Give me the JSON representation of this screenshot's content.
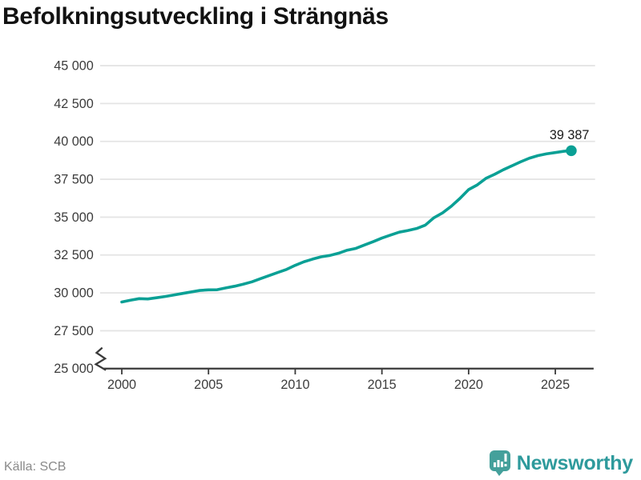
{
  "title": "Befolkningsutveckling i Strängnäs",
  "source": "Källa: SCB",
  "branding": {
    "logo_text": "Newsworthy",
    "logo_icon": "bar-chart-speech-bubble-icon"
  },
  "colors": {
    "line": "#0aa095",
    "dot": "#0aa095",
    "grid": "#e4e4e4",
    "axis": "#3a3a3a",
    "tick_label": "#3c3c3c",
    "end_label": "#1a1a1a",
    "title": "#121212",
    "source_text": "#8a8a8a",
    "brand": "#2e9a9c",
    "logo_fill": "#44a09b"
  },
  "chart_data": {
    "type": "line",
    "title": "Befolkningsutveckling i Strängnäs",
    "xlabel": "",
    "ylabel": "",
    "grid": true,
    "legend": false,
    "axis_break": true,
    "ylim": [
      25000,
      45000
    ],
    "xlim": [
      1999,
      2027.2
    ],
    "y_ticks": [
      {
        "value": 45000,
        "label": "45 000"
      },
      {
        "value": 42500,
        "label": "42 500"
      },
      {
        "value": 40000,
        "label": "40 000"
      },
      {
        "value": 37500,
        "label": "37 500"
      },
      {
        "value": 35000,
        "label": "35 000"
      },
      {
        "value": 32500,
        "label": "32 500"
      },
      {
        "value": 30000,
        "label": "30 000"
      },
      {
        "value": 27500,
        "label": "27 500"
      },
      {
        "value": 25000,
        "label": "25 000"
      }
    ],
    "x_ticks": [
      {
        "value": 2000,
        "label": "2000"
      },
      {
        "value": 2005,
        "label": "2005"
      },
      {
        "value": 2010,
        "label": "2010"
      },
      {
        "value": 2015,
        "label": "2015"
      },
      {
        "value": 2020,
        "label": "2020"
      },
      {
        "value": 2025,
        "label": "2025"
      }
    ],
    "x": [
      2000,
      2000.5,
      2001,
      2001.5,
      2002,
      2002.5,
      2003,
      2003.5,
      2004,
      2004.5,
      2005,
      2005.5,
      2006,
      2006.5,
      2007,
      2007.5,
      2008,
      2008.5,
      2009,
      2009.5,
      2010,
      2010.5,
      2011,
      2011.5,
      2012,
      2012.5,
      2013,
      2013.5,
      2014,
      2014.5,
      2015,
      2015.5,
      2016,
      2016.5,
      2017,
      2017.5,
      2018,
      2018.5,
      2019,
      2019.5,
      2020,
      2020.5,
      2021,
      2021.5,
      2022,
      2022.5,
      2023,
      2023.5,
      2024,
      2024.5,
      2025,
      2025.5,
      2025.92
    ],
    "series": [
      {
        "name": "Befolkning",
        "values": [
          29400,
          29520,
          29620,
          29600,
          29680,
          29760,
          29860,
          29960,
          30060,
          30160,
          30200,
          30210,
          30330,
          30440,
          30570,
          30730,
          30940,
          31150,
          31350,
          31550,
          31820,
          32050,
          32230,
          32380,
          32470,
          32620,
          32820,
          32940,
          33160,
          33380,
          33620,
          33820,
          34010,
          34120,
          34250,
          34470,
          34960,
          35280,
          35720,
          36240,
          36820,
          37130,
          37560,
          37830,
          38130,
          38390,
          38650,
          38890,
          39060,
          39180,
          39260,
          39350,
          39387
        ]
      }
    ],
    "end_point": {
      "x": 2025.92,
      "value": 39387,
      "label": "39 387"
    }
  }
}
